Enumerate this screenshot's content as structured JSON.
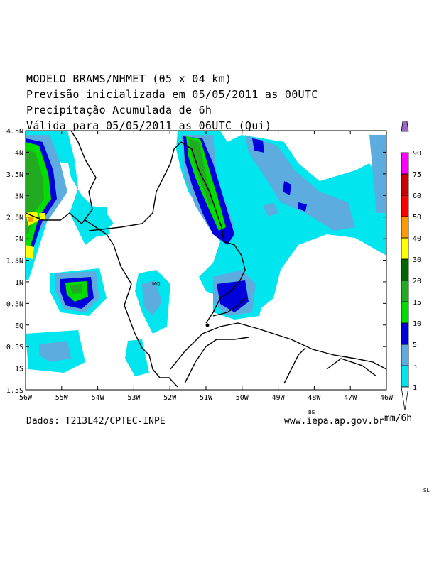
{
  "header": {
    "lines": [
      "MODELO BRAMS/NHMET (05 x 04 km)",
      "Previsão inicializada em 05/05/2011 as 00UTC",
      "Precipitação Acumulada de 6h",
      "Válida para 05/05/2011 as 06UTC (Qui)"
    ]
  },
  "axes": {
    "lon_labels": [
      "56W",
      "55W",
      "54W",
      "53W",
      "52W",
      "51W",
      "50W",
      "49W",
      "48W",
      "47W",
      "46W"
    ],
    "lat_labels": [
      "4.5N",
      "4N",
      "3.5N",
      "3N",
      "2.5N",
      "2N",
      "1.5N",
      "1N",
      "0.5N",
      "EQ",
      "0.5S",
      "1S",
      "1.5S"
    ]
  },
  "colorbar": {
    "levels": [
      "1",
      "3",
      "5",
      "10",
      "15",
      "20",
      "30",
      "40",
      "50",
      "60",
      "75",
      "90"
    ],
    "colors": [
      "#00e5ee",
      "#5cace0",
      "#0000dd",
      "#00dd00",
      "#22aa22",
      "#006600",
      "#ffff00",
      "#ff9900",
      "#ff0000",
      "#cc0000",
      "#ff00ff",
      "#9966cc"
    ],
    "unit": "mm/6h"
  },
  "map_labels": {
    "city_mq": "MQ",
    "city_be": "BE",
    "city_sl": "SL"
  },
  "footer": {
    "source": "Dados: T213L42/CPTEC-INPE",
    "site": "www.iepa.ap.gov.br"
  }
}
